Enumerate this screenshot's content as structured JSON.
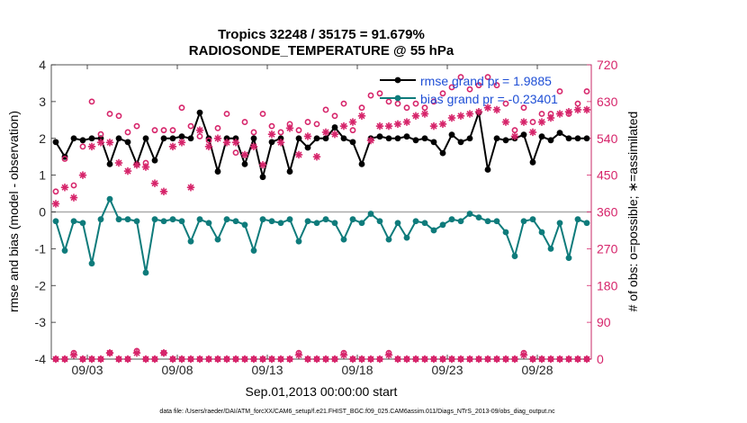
{
  "chart_data": {
    "type": "line",
    "title": [
      "Tropics 32248 / 35175 = 91.679%",
      "RADIOSONDE_TEMPERATURE @ 55 hPa"
    ],
    "xlabel": "Sep.01,2013 00:00:00 start",
    "ylabel_left": "rmse and bias (model - observation)",
    "ylabel_right": "# of obs: o=possible; ∗=assimilated",
    "footnote": "data file: /Users/raeder/DAI/ATM_forcXX/CAM6_setup/f.e21.FHIST_BGC.f09_025.CAM6assim.011/Diags_NTrS_2013-09/obs_diag_output.nc",
    "xlim": [
      1,
      31
    ],
    "ylim_left": [
      -4,
      4
    ],
    "ylim_right": [
      0,
      720
    ],
    "x_ticks": [
      3,
      8,
      13,
      18,
      23,
      28
    ],
    "x_tick_labels": [
      "09/03",
      "09/08",
      "09/13",
      "09/18",
      "09/23",
      "09/28"
    ],
    "y_ticks_left": [
      4,
      3,
      2,
      1,
      0,
      -1,
      -2,
      -3,
      -4
    ],
    "y_tick_labels_left": [
      "4",
      "3",
      "2",
      "1",
      "0",
      "-1",
      "-2",
      "-3",
      "-4"
    ],
    "y_ticks_right": [
      720,
      630,
      540,
      450,
      360,
      270,
      180,
      90,
      0
    ],
    "y_tick_labels_right": [
      "720",
      "630",
      "540",
      "450",
      "360",
      "270",
      "180",
      "90",
      "0"
    ],
    "legend": {
      "position": "top-right",
      "entries": [
        "rmse grand pr = 1.9885",
        "bias grand pr = -0.23401"
      ]
    },
    "x": [
      1.25,
      1.75,
      2.25,
      2.75,
      3.25,
      3.75,
      4.25,
      4.75,
      5.25,
      5.75,
      6.25,
      6.75,
      7.25,
      7.75,
      8.25,
      8.75,
      9.25,
      9.75,
      10.25,
      10.75,
      11.25,
      11.75,
      12.25,
      12.75,
      13.25,
      13.75,
      14.25,
      14.75,
      15.25,
      15.75,
      16.25,
      16.75,
      17.25,
      17.75,
      18.25,
      18.75,
      19.25,
      19.75,
      20.25,
      20.75,
      21.25,
      21.75,
      22.25,
      22.75,
      23.25,
      23.75,
      24.25,
      24.75,
      25.25,
      25.75,
      26.25,
      26.75,
      27.25,
      27.75,
      28.25,
      28.75,
      29.25,
      29.75,
      30.25,
      30.75
    ],
    "series": [
      {
        "name": "rmse",
        "color": "#000000",
        "axis": "left",
        "marker": "dot",
        "values": [
          1.9,
          1.5,
          2.0,
          1.95,
          2.0,
          2.0,
          1.3,
          2.0,
          1.9,
          1.3,
          2.0,
          1.4,
          2.0,
          2.0,
          2.05,
          2.0,
          2.7,
          2.0,
          1.1,
          2.0,
          2.0,
          1.3,
          2.0,
          0.95,
          1.9,
          2.0,
          1.1,
          2.0,
          1.75,
          2.0,
          2.0,
          2.3,
          2.0,
          1.9,
          1.3,
          2.0,
          2.05,
          2.0,
          2.0,
          2.05,
          1.95,
          2.0,
          1.9,
          1.6,
          2.1,
          1.9,
          2.0,
          2.7,
          1.15,
          2.0,
          1.95,
          2.0,
          2.1,
          1.35,
          2.05,
          1.95,
          2.15,
          2.0,
          2.0,
          2.0
        ]
      },
      {
        "name": "bias",
        "color": "#0e7b7b",
        "axis": "left",
        "marker": "dot",
        "values": [
          -0.25,
          -1.05,
          -0.25,
          -0.3,
          -1.4,
          -0.2,
          0.35,
          -0.2,
          -0.2,
          -0.25,
          -1.65,
          -0.2,
          -0.25,
          -0.2,
          -0.25,
          -0.8,
          -0.2,
          -0.3,
          -0.75,
          -0.2,
          -0.25,
          -0.35,
          -1.05,
          -0.2,
          -0.25,
          -0.3,
          -0.2,
          -0.8,
          -0.25,
          -0.3,
          -0.2,
          -0.3,
          -0.75,
          -0.2,
          -0.3,
          -0.05,
          -0.25,
          -0.75,
          -0.3,
          -0.7,
          -0.25,
          -0.3,
          -0.5,
          -0.35,
          -0.2,
          -0.25,
          -0.05,
          -0.15,
          -0.25,
          -0.25,
          -0.55,
          -1.2,
          -0.25,
          -0.2,
          -0.55,
          -1.0,
          -0.3,
          -1.25,
          -0.2,
          -0.3
        ]
      },
      {
        "name": "possible",
        "color": "#d6246a",
        "axis": "right",
        "marker": "circle",
        "values": [
          410,
          490,
          425,
          520,
          630,
          550,
          600,
          595,
          555,
          570,
          480,
          560,
          560,
          560,
          615,
          570,
          545,
          535,
          565,
          600,
          505,
          580,
          555,
          600,
          570,
          555,
          575,
          560,
          580,
          575,
          610,
          595,
          625,
          560,
          615,
          645,
          650,
          630,
          625,
          615,
          625,
          615,
          630,
          650,
          665,
          690,
          660,
          670,
          690,
          670,
          625,
          560,
          615,
          580,
          600,
          600,
          655,
          600,
          625,
          655
        ]
      },
      {
        "name": "assimilated",
        "color": "#d6246a",
        "axis": "right",
        "marker": "asterisk",
        "values": [
          380,
          420,
          395,
          450,
          520,
          530,
          530,
          480,
          460,
          475,
          470,
          430,
          410,
          520,
          530,
          420,
          560,
          520,
          540,
          530,
          530,
          500,
          520,
          475,
          550,
          530,
          565,
          500,
          545,
          495,
          555,
          550,
          570,
          580,
          595,
          535,
          570,
          570,
          575,
          580,
          595,
          600,
          570,
          575,
          590,
          595,
          600,
          605,
          615,
          610,
          580,
          545,
          580,
          555,
          580,
          590,
          600,
          605,
          610,
          610
        ]
      },
      {
        "name": "possible_bottom",
        "color": "#d6246a",
        "axis": "right",
        "marker": "circle",
        "values": [
          0,
          0,
          15,
          0,
          0,
          0,
          15,
          0,
          0,
          20,
          0,
          0,
          15,
          0,
          0,
          0,
          0,
          0,
          0,
          0,
          0,
          0,
          0,
          0,
          0,
          0,
          0,
          15,
          0,
          0,
          0,
          0,
          15,
          0,
          0,
          0,
          0,
          15,
          0,
          0,
          0,
          0,
          0,
          0,
          0,
          0,
          0,
          0,
          0,
          0,
          0,
          0,
          15,
          0,
          0,
          0,
          0,
          0,
          0,
          0
        ]
      },
      {
        "name": "assimilated_bottom",
        "color": "#d6246a",
        "axis": "right",
        "marker": "asterisk",
        "values": [
          0,
          0,
          10,
          0,
          0,
          0,
          15,
          0,
          0,
          15,
          0,
          0,
          15,
          0,
          0,
          0,
          0,
          0,
          0,
          0,
          0,
          0,
          0,
          0,
          0,
          0,
          0,
          10,
          0,
          0,
          0,
          0,
          10,
          0,
          0,
          0,
          0,
          10,
          0,
          0,
          0,
          0,
          0,
          0,
          0,
          0,
          0,
          0,
          0,
          0,
          0,
          0,
          10,
          0,
          0,
          0,
          0,
          0,
          0,
          0
        ]
      }
    ]
  }
}
